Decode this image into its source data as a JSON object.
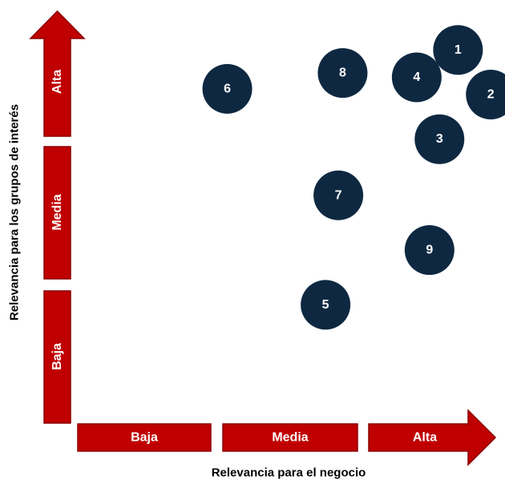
{
  "chart_data": {
    "type": "scatter",
    "xlabel": "Relevancia para el negocio",
    "ylabel": "Relevancia para los grupos de interés",
    "x_levels": [
      "Baja",
      "Media",
      "Alta"
    ],
    "y_levels": [
      "Baja",
      "Media",
      "Alta"
    ],
    "points": [
      {
        "label": "1",
        "x": 2.67,
        "y": 2.77
      },
      {
        "label": "2",
        "x": 2.9,
        "y": 2.46
      },
      {
        "label": "3",
        "x": 2.54,
        "y": 2.15
      },
      {
        "label": "4",
        "x": 2.38,
        "y": 2.58
      },
      {
        "label": "5",
        "x": 1.74,
        "y": 1.0
      },
      {
        "label": "6",
        "x": 1.05,
        "y": 2.5
      },
      {
        "label": "7",
        "x": 1.83,
        "y": 1.76
      },
      {
        "label": "8",
        "x": 1.86,
        "y": 2.61
      },
      {
        "label": "9",
        "x": 2.47,
        "y": 1.38
      }
    ]
  },
  "colors": {
    "band": "#c00000",
    "band_border": "#8b0000",
    "bubble": "#0e2841"
  }
}
